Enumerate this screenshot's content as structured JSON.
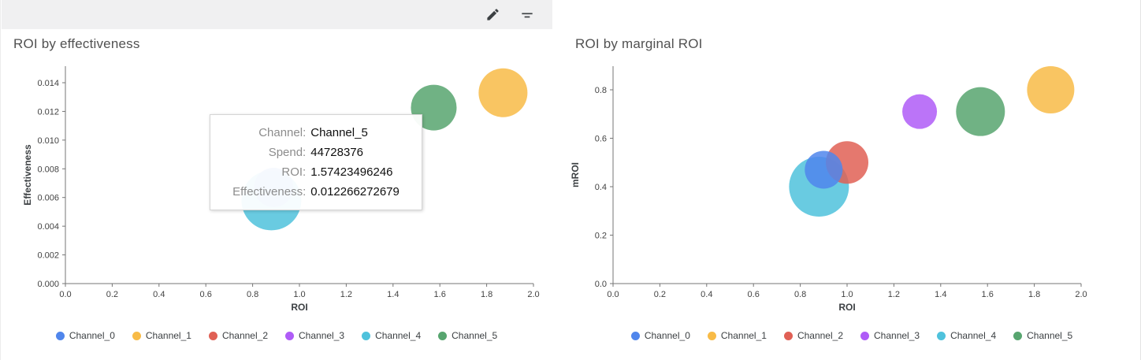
{
  "toolbar": {
    "icons": [
      "edit-icon",
      "filter-icon"
    ]
  },
  "chart_data": [
    {
      "type": "bubble",
      "title": "ROI by effectiveness",
      "xlabel": "ROI",
      "ylabel": "Effectiveness",
      "xlim": [
        0,
        2
      ],
      "ylim": [
        0,
        0.0151
      ],
      "grid": false,
      "legend_position": "bottom",
      "xtick_values": [
        0,
        0.2,
        0.4,
        0.6,
        0.8,
        1.0,
        1.2,
        1.4,
        1.6,
        1.8,
        2.0
      ],
      "xtick_labels": [
        "0.0",
        "0.2",
        "0.4",
        "0.6",
        "0.8",
        "1.0",
        "1.2",
        "1.4",
        "1.6",
        "1.8",
        "2.0"
      ],
      "ytick_values": [
        0,
        0.002,
        0.004,
        0.006,
        0.008,
        0.01,
        0.012,
        0.014
      ],
      "ytick_labels": [
        "0.000",
        "0.002",
        "0.004",
        "0.006",
        "0.008",
        "0.010",
        "0.012",
        "0.014"
      ],
      "points": [
        {
          "name": "Channel_4",
          "x": 0.88,
          "y": 0.0058,
          "r": 38,
          "color": "#4FC2DC"
        },
        {
          "name": "Channel_0",
          "x": 0.89,
          "y": 0.0067,
          "r": 25,
          "color": "#5086EC"
        },
        {
          "name": "Channel_5",
          "x": 1.574,
          "y": 0.012266,
          "r": 29,
          "color": "#57A56F"
        },
        {
          "name": "Channel_1",
          "x": 1.87,
          "y": 0.0133,
          "r": 31,
          "color": "#F8BB47"
        }
      ]
    },
    {
      "type": "bubble",
      "title": "ROI by marginal ROI",
      "xlabel": "ROI",
      "ylabel": "mROI",
      "xlim": [
        0,
        2
      ],
      "ylim": [
        0,
        0.9
      ],
      "grid": false,
      "legend_position": "bottom",
      "xtick_values": [
        0,
        0.2,
        0.4,
        0.6,
        0.8,
        1.0,
        1.2,
        1.4,
        1.6,
        1.8,
        2.0
      ],
      "xtick_labels": [
        "0.0",
        "0.2",
        "0.4",
        "0.6",
        "0.8",
        "1.0",
        "1.2",
        "1.4",
        "1.6",
        "1.8",
        "2.0"
      ],
      "ytick_values": [
        0,
        0.2,
        0.4,
        0.6,
        0.8
      ],
      "ytick_labels": [
        "0.0",
        "0.2",
        "0.4",
        "0.6",
        "0.8"
      ],
      "points": [
        {
          "name": "Channel_4",
          "x": 0.88,
          "y": 0.4,
          "r": 38,
          "color": "#4FC2DC"
        },
        {
          "name": "Channel_2",
          "x": 1.0,
          "y": 0.5,
          "r": 27,
          "color": "#E06055"
        },
        {
          "name": "Channel_0",
          "x": 0.9,
          "y": 0.47,
          "r": 24,
          "color": "#5086EC"
        },
        {
          "name": "Channel_3",
          "x": 1.31,
          "y": 0.71,
          "r": 22,
          "color": "#AF5CF7"
        },
        {
          "name": "Channel_5",
          "x": 1.57,
          "y": 0.71,
          "r": 31,
          "color": "#57A56F"
        },
        {
          "name": "Channel_1",
          "x": 1.87,
          "y": 0.8,
          "r": 30,
          "color": "#F8BB47"
        }
      ]
    }
  ],
  "tooltip": {
    "rows": [
      {
        "label": "Channel:",
        "value": "Channel_5"
      },
      {
        "label": "Spend:",
        "value": "44728376"
      },
      {
        "label": "ROI:",
        "value": "1.57423496246"
      },
      {
        "label": "Effectiveness:",
        "value": "0.012266272679"
      }
    ]
  },
  "legend": {
    "items": [
      {
        "label": "Channel_0",
        "color": "#5086EC"
      },
      {
        "label": "Channel_1",
        "color": "#F8BB47"
      },
      {
        "label": "Channel_2",
        "color": "#E06055"
      },
      {
        "label": "Channel_3",
        "color": "#AF5CF7"
      },
      {
        "label": "Channel_4",
        "color": "#4FC2DC"
      },
      {
        "label": "Channel_5",
        "color": "#57A56F"
      }
    ]
  }
}
